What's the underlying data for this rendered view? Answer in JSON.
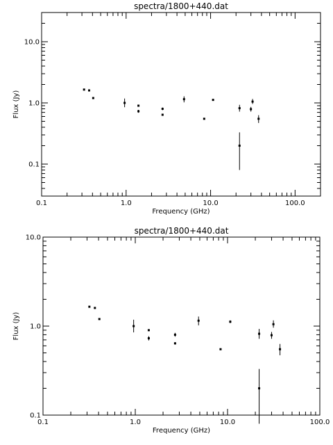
{
  "chart_data": [
    {
      "type": "scatter",
      "title": "spectra/1800+440.dat",
      "xlabel": "Frequency (GHz)",
      "ylabel": "Flux (Jy)",
      "xscale": "log",
      "yscale": "log",
      "xlim": [
        0.1,
        200
      ],
      "ylim": [
        0.03,
        30
      ],
      "xticks": [
        0.1,
        1.0,
        10.0,
        100.0
      ],
      "xtick_labels": [
        "0.1",
        "1.0",
        "10.0",
        "100.0"
      ],
      "yticks": [
        0.1,
        1.0,
        10.0
      ],
      "ytick_labels": [
        "0.1",
        "1.0",
        "10.0"
      ],
      "grid": false,
      "points": [
        {
          "x": 0.318,
          "y": 1.65,
          "ylo": 1.62,
          "yhi": 1.68
        },
        {
          "x": 0.365,
          "y": 1.6,
          "ylo": 1.56,
          "yhi": 1.64
        },
        {
          "x": 0.408,
          "y": 1.2,
          "ylo": 1.17,
          "yhi": 1.23
        },
        {
          "x": 0.96,
          "y": 1.0,
          "ylo": 0.85,
          "yhi": 1.18
        },
        {
          "x": 1.4,
          "y": 0.73,
          "ylo": 0.69,
          "yhi": 0.77
        },
        {
          "x": 1.4,
          "y": 0.9,
          "ylo": 0.89,
          "yhi": 0.91
        },
        {
          "x": 2.7,
          "y": 0.8,
          "ylo": 0.76,
          "yhi": 0.84
        },
        {
          "x": 2.7,
          "y": 0.64,
          "ylo": 0.62,
          "yhi": 0.66
        },
        {
          "x": 4.85,
          "y": 1.15,
          "ylo": 1.02,
          "yhi": 1.28
        },
        {
          "x": 8.4,
          "y": 0.55,
          "ylo": 0.54,
          "yhi": 0.56
        },
        {
          "x": 10.7,
          "y": 1.12,
          "ylo": 1.08,
          "yhi": 1.16
        },
        {
          "x": 22.0,
          "y": 0.82,
          "ylo": 0.72,
          "yhi": 0.93
        },
        {
          "x": 22.0,
          "y": 0.2,
          "ylo": 0.08,
          "yhi": 0.33
        },
        {
          "x": 30.0,
          "y": 0.79,
          "ylo": 0.72,
          "yhi": 0.86
        },
        {
          "x": 31.4,
          "y": 1.05,
          "ylo": 0.96,
          "yhi": 1.16
        },
        {
          "x": 37.0,
          "y": 0.55,
          "ylo": 0.47,
          "yhi": 0.63
        }
      ]
    },
    {
      "type": "scatter",
      "title": "spectra/1800+440.dat",
      "xlabel": "Frequency (GHz)",
      "ylabel": "Flux (Jy)",
      "xscale": "log",
      "yscale": "log",
      "xlim": [
        0.1,
        100
      ],
      "ylim": [
        0.1,
        10
      ],
      "xticks": [
        0.1,
        1.0,
        10.0,
        100.0
      ],
      "xtick_labels": [
        "0.1",
        "1.0",
        "10.0",
        "100.0"
      ],
      "yticks": [
        0.1,
        1.0,
        10.0
      ],
      "ytick_labels": [
        "0.1",
        "1.0",
        "10.0"
      ],
      "grid": false,
      "points": [
        {
          "x": 0.318,
          "y": 1.65,
          "ylo": 1.62,
          "yhi": 1.68
        },
        {
          "x": 0.365,
          "y": 1.6,
          "ylo": 1.56,
          "yhi": 1.64
        },
        {
          "x": 0.408,
          "y": 1.2,
          "ylo": 1.17,
          "yhi": 1.23
        },
        {
          "x": 0.96,
          "y": 1.0,
          "ylo": 0.85,
          "yhi": 1.18
        },
        {
          "x": 1.4,
          "y": 0.73,
          "ylo": 0.69,
          "yhi": 0.77
        },
        {
          "x": 1.4,
          "y": 0.9,
          "ylo": 0.89,
          "yhi": 0.91
        },
        {
          "x": 2.7,
          "y": 0.8,
          "ylo": 0.76,
          "yhi": 0.84
        },
        {
          "x": 2.7,
          "y": 0.64,
          "ylo": 0.62,
          "yhi": 0.66
        },
        {
          "x": 4.85,
          "y": 1.15,
          "ylo": 1.02,
          "yhi": 1.28
        },
        {
          "x": 8.4,
          "y": 0.55,
          "ylo": 0.54,
          "yhi": 0.56
        },
        {
          "x": 10.7,
          "y": 1.12,
          "ylo": 1.08,
          "yhi": 1.16
        },
        {
          "x": 22.0,
          "y": 0.82,
          "ylo": 0.72,
          "yhi": 0.93
        },
        {
          "x": 22.0,
          "y": 0.2,
          "ylo": 0.08,
          "yhi": 0.33
        },
        {
          "x": 30.0,
          "y": 0.79,
          "ylo": 0.72,
          "yhi": 0.86
        },
        {
          "x": 31.4,
          "y": 1.05,
          "ylo": 0.96,
          "yhi": 1.16
        },
        {
          "x": 37.0,
          "y": 0.55,
          "ylo": 0.47,
          "yhi": 0.63
        }
      ]
    }
  ]
}
